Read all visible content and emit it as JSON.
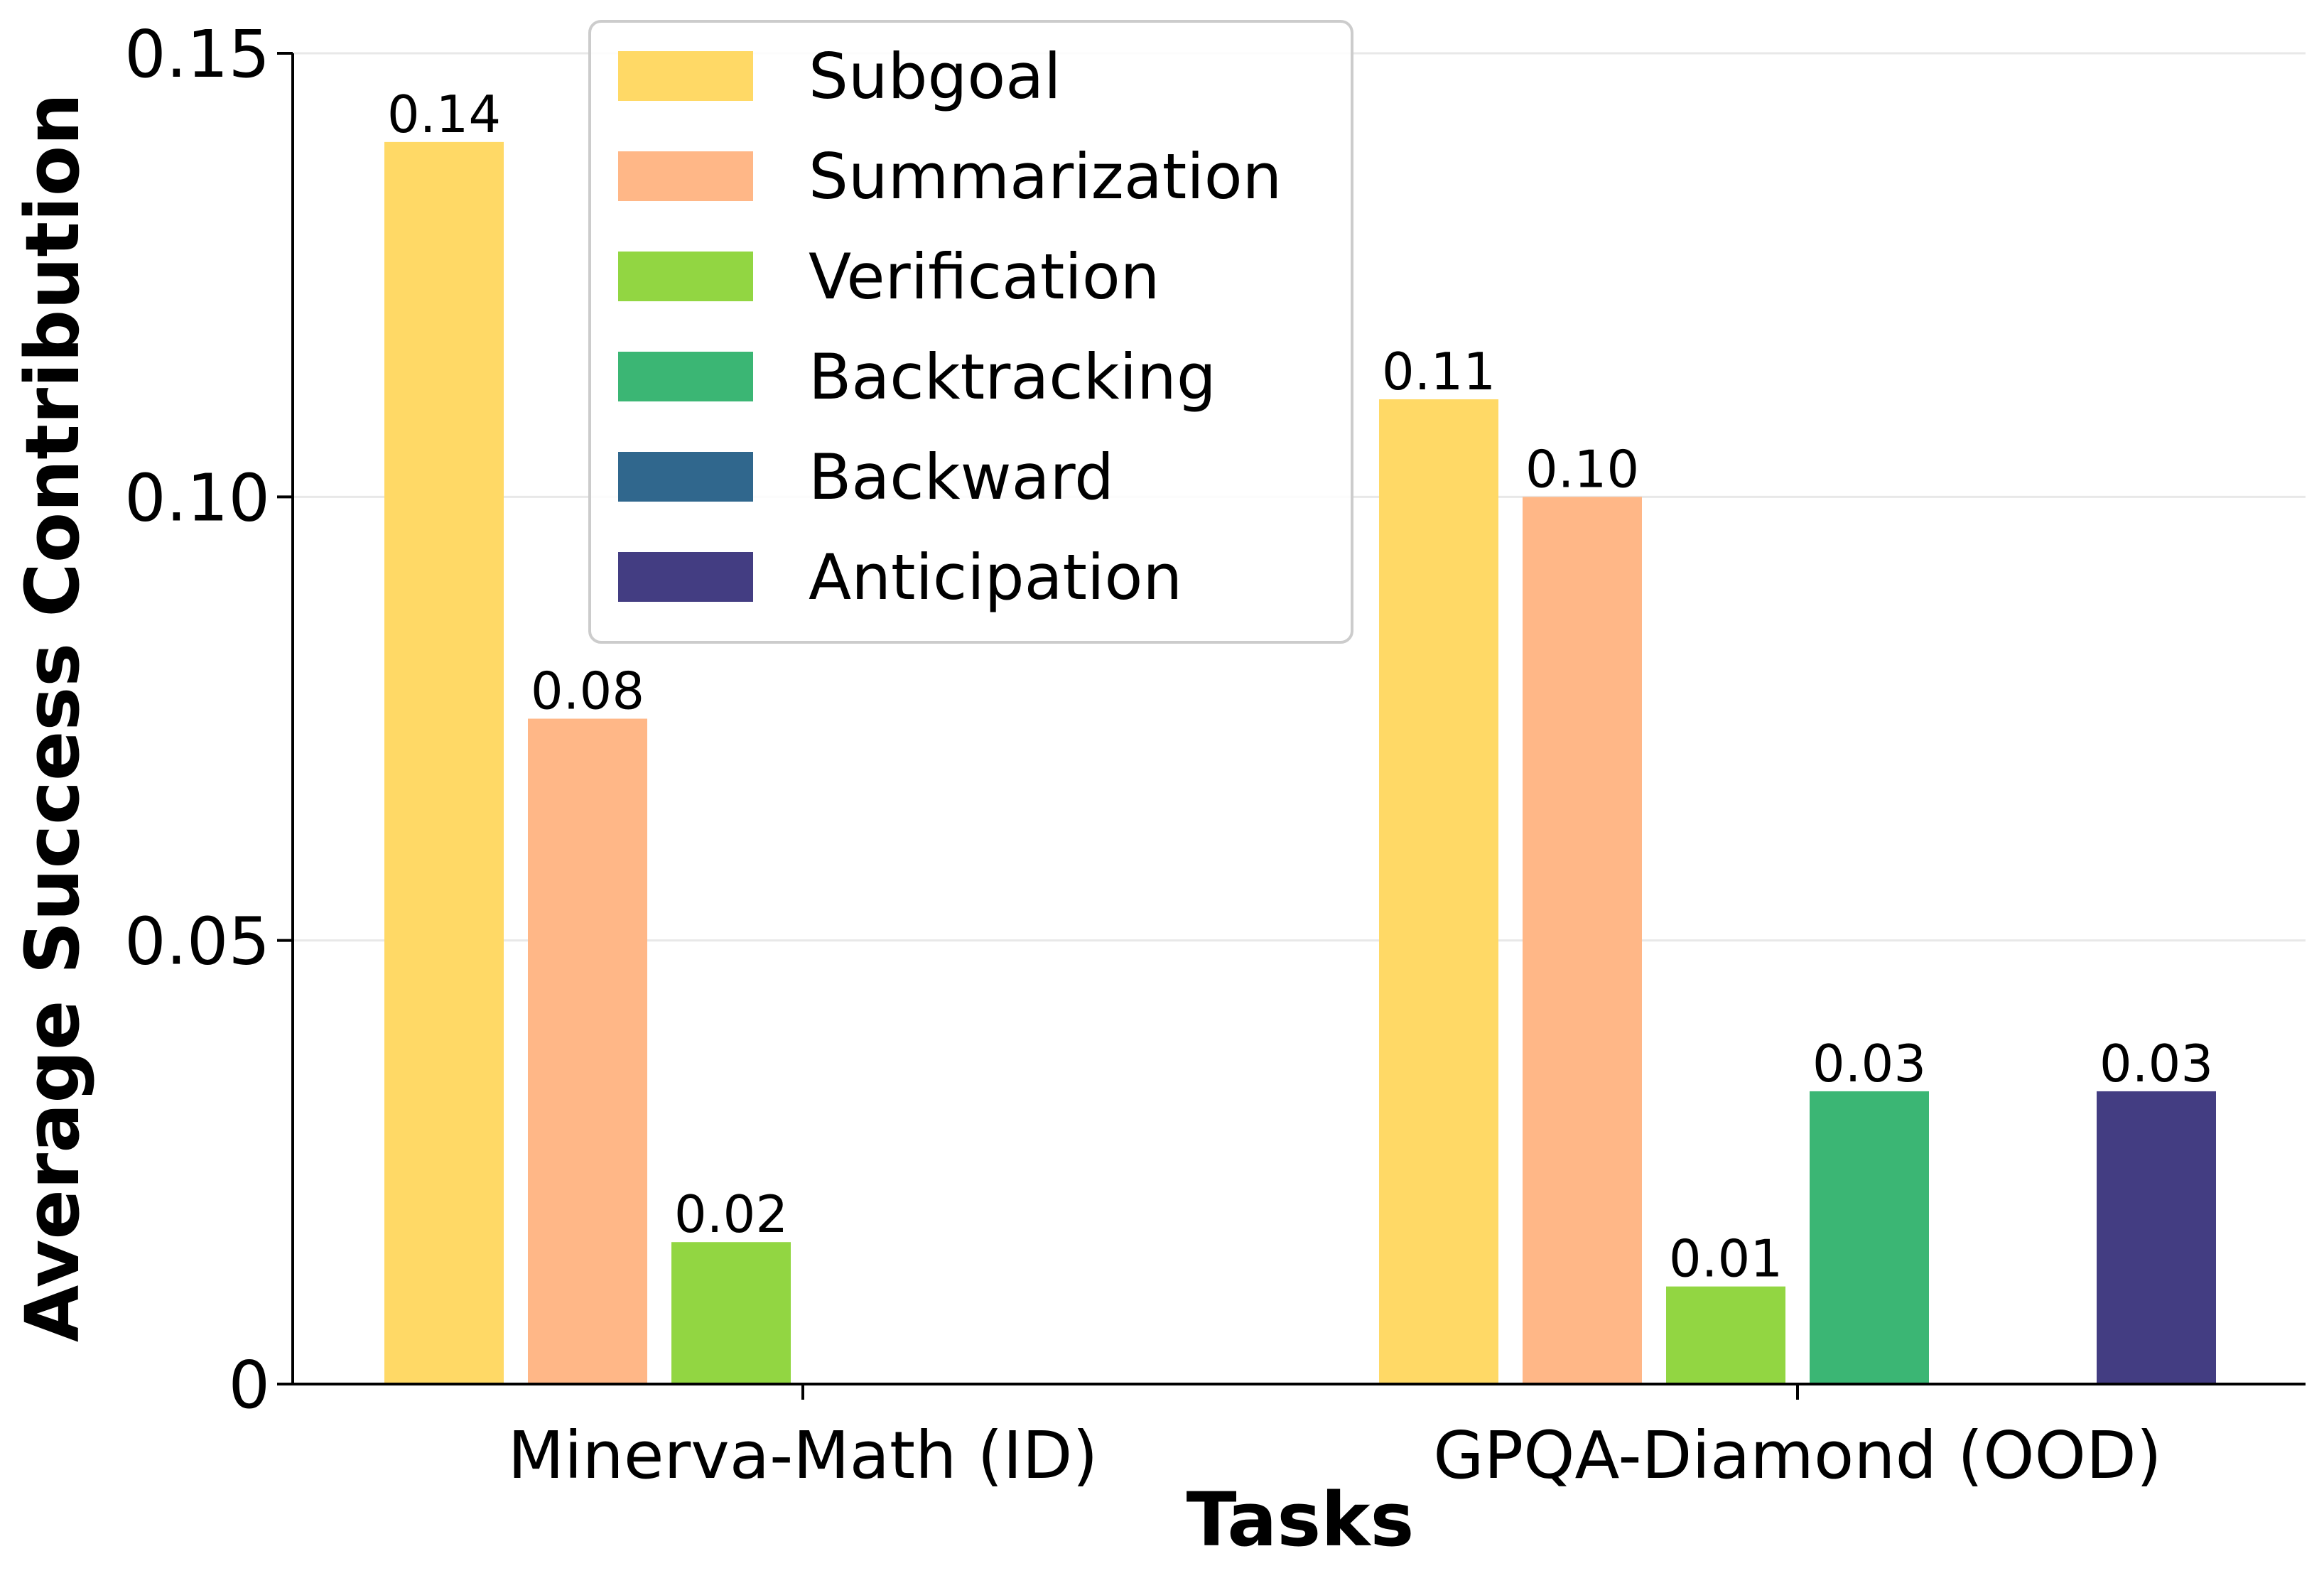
{
  "chart_data": {
    "type": "bar",
    "title": "",
    "xlabel": "Tasks",
    "ylabel": "Average Success Contribution",
    "categories": [
      "Minerva-Math (ID)",
      "GPQA-Diamond (OOD)"
    ],
    "ylim": [
      0,
      0.15
    ],
    "yticks": [
      0,
      0.05,
      0.1,
      0.15
    ],
    "ytick_labels": [
      "0",
      "0.05",
      "0.10",
      "0.15"
    ],
    "grid": "horizontal",
    "legend_position": "top-center",
    "series": [
      {
        "name": "Subgoal",
        "color": "#FFD966",
        "values": [
          0.14,
          0.111
        ],
        "labels": [
          "0.14",
          "0.11"
        ]
      },
      {
        "name": "Summarization",
        "color": "#FFB787",
        "values": [
          0.075,
          0.1
        ],
        "labels": [
          "0.08",
          "0.10"
        ]
      },
      {
        "name": "Verification",
        "color": "#92D642",
        "values": [
          0.016,
          0.011
        ],
        "labels": [
          "0.02",
          "0.01"
        ]
      },
      {
        "name": "Backtracking",
        "color": "#3BB674",
        "values": [
          0,
          0.033
        ],
        "labels": [
          "",
          "0.03"
        ]
      },
      {
        "name": "Backward",
        "color": "#30678D",
        "values": [
          0,
          0
        ],
        "labels": [
          "",
          ""
        ]
      },
      {
        "name": "Anticipation",
        "color": "#433D82",
        "values": [
          0,
          0.033
        ],
        "labels": [
          "",
          "0.03"
        ]
      }
    ]
  }
}
